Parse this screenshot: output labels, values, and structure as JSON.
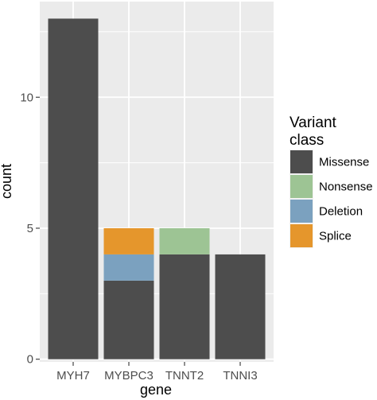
{
  "chart_data": {
    "type": "bar",
    "stacked": true,
    "xlabel": "gene",
    "ylabel": "count",
    "categories": [
      "MYH7",
      "MYBPC3",
      "TNNT2",
      "TNNI3"
    ],
    "series": [
      {
        "name": "Missense",
        "color": "#4d4d4d",
        "values": [
          13,
          3,
          4,
          4
        ]
      },
      {
        "name": "Nonsense",
        "color": "#9dc494",
        "values": [
          0,
          0,
          1,
          0
        ]
      },
      {
        "name": "Deletion",
        "color": "#7ba1bf",
        "values": [
          0,
          1,
          0,
          0
        ]
      },
      {
        "name": "Splice",
        "color": "#e5962c",
        "values": [
          0,
          1,
          0,
          0
        ]
      }
    ],
    "yticks": [
      0,
      5,
      10
    ],
    "ylim": [
      -0.1,
      13.65
    ],
    "grid": true,
    "panel_background": "#ebebeb",
    "legend": {
      "title_line1": "Variant",
      "title_line2": "class",
      "position": "right"
    }
  }
}
